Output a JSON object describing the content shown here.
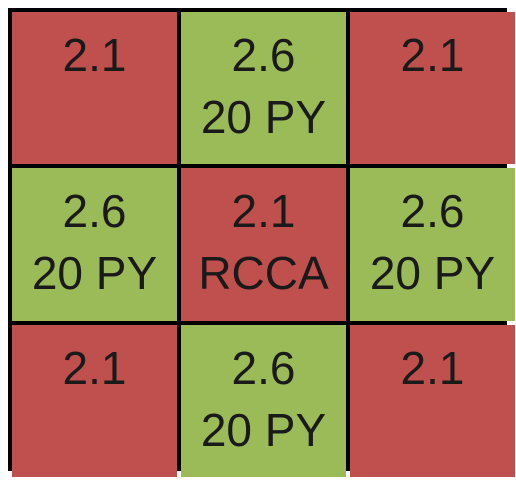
{
  "colors": {
    "red": "#c0504d",
    "green": "#9bbb59",
    "border": "#000000"
  },
  "cells": [
    {
      "color": "red",
      "lines": [
        "2.1"
      ]
    },
    {
      "color": "green",
      "lines": [
        "2.6",
        "20 PY"
      ]
    },
    {
      "color": "red",
      "lines": [
        "2.1"
      ]
    },
    {
      "color": "green",
      "lines": [
        "2.6",
        "20 PY"
      ]
    },
    {
      "color": "red",
      "lines": [
        "2.1",
        "RCCA"
      ]
    },
    {
      "color": "green",
      "lines": [
        "2.6",
        "20 PY"
      ]
    },
    {
      "color": "red",
      "lines": [
        "2.1"
      ]
    },
    {
      "color": "green",
      "lines": [
        "2.6",
        "20 PY"
      ]
    },
    {
      "color": "red",
      "lines": [
        "2.1"
      ]
    }
  ]
}
